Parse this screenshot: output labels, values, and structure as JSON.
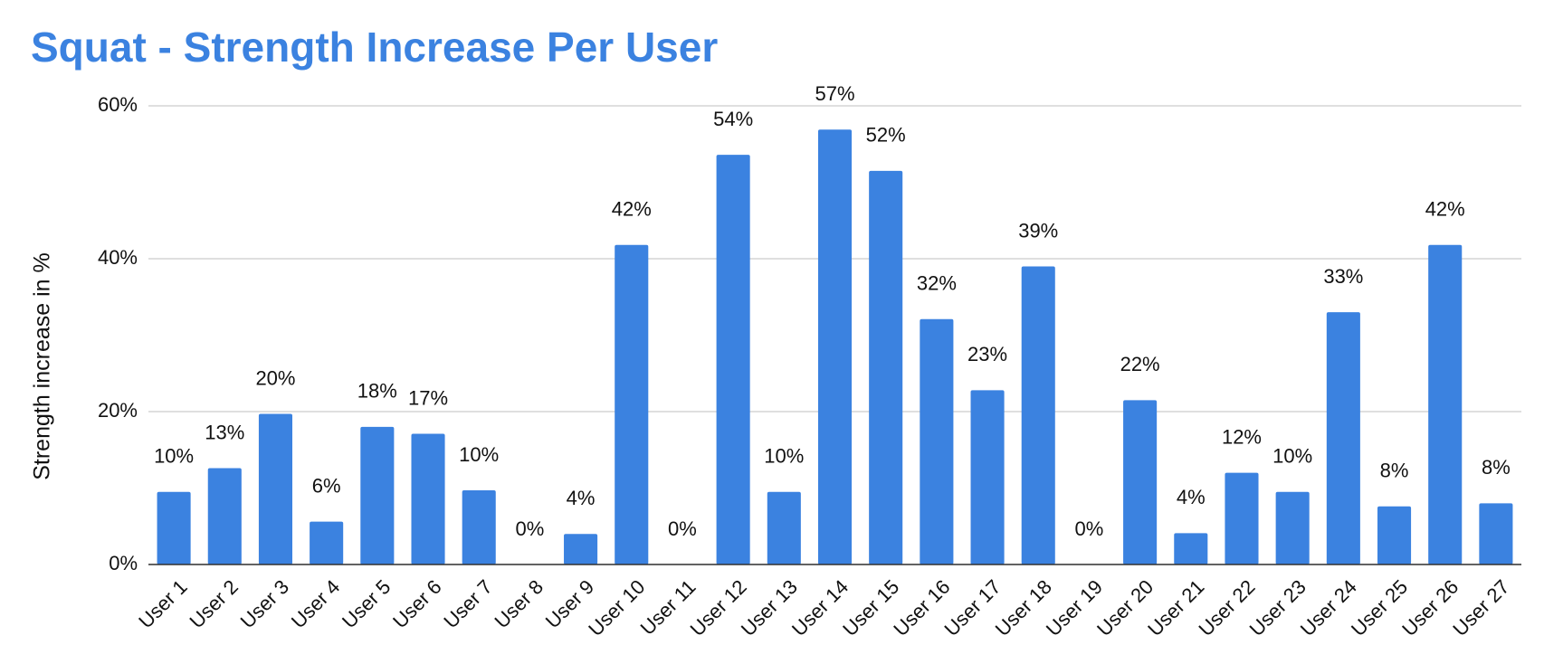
{
  "chart_data": {
    "type": "bar",
    "title": "Squat - Strength Increase Per User",
    "y_label": "Strength increase in %",
    "categories": [
      "User 1",
      "User 2",
      "User 3",
      "User 4",
      "User 5",
      "User 6",
      "User 7",
      "User 8",
      "User 9",
      "User 10",
      "User 11",
      "User 12",
      "User 13",
      "User 14",
      "User 15",
      "User 16",
      "User 17",
      "User 18",
      "User 19",
      "User 20",
      "User 21",
      "User 22",
      "User 23",
      "User 24",
      "User 25",
      "User 26",
      "User 27"
    ],
    "values": [
      9.5,
      12.6,
      19.7,
      5.6,
      18.0,
      17.1,
      9.7,
      0,
      4.0,
      41.8,
      0,
      53.6,
      9.5,
      56.9,
      51.5,
      32.1,
      22.8,
      39.0,
      0,
      21.5,
      4.1,
      12.0,
      9.5,
      33.0,
      7.6,
      41.8,
      8.0
    ],
    "value_labels": [
      "10%",
      "13%",
      "20%",
      "6%",
      "18%",
      "17%",
      "10%",
      "0%",
      "4%",
      "42%",
      "0%",
      "54%",
      "10%",
      "57%",
      "52%",
      "32%",
      "23%",
      "39%",
      "0%",
      "22%",
      "4%",
      "12%",
      "10%",
      "33%",
      "8%",
      "42%",
      "8%"
    ],
    "color": "#3b82e0",
    "ylim": [
      0,
      60
    ],
    "yticks": [
      {
        "value": 0,
        "label": "0%"
      },
      {
        "value": 20,
        "label": "20%"
      },
      {
        "value": 40,
        "label": "40%"
      },
      {
        "value": 60,
        "label": "60%"
      }
    ],
    "grid": true
  }
}
